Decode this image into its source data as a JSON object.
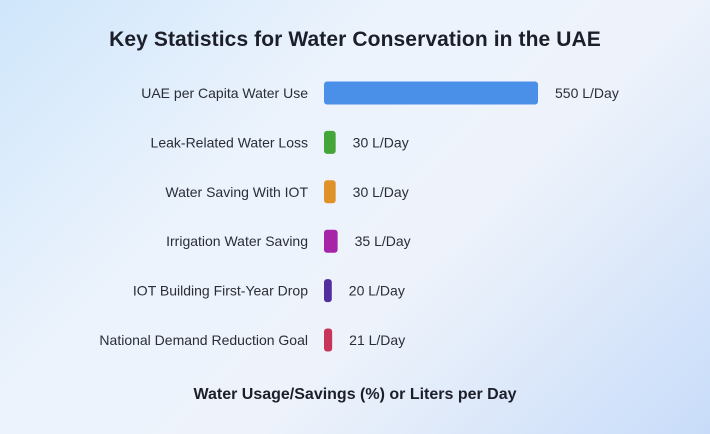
{
  "chart_data": {
    "type": "bar",
    "orientation": "horizontal",
    "title": "Key Statistics for Water Conservation  in the UAE",
    "xlabel": "Water Usage/Savings (%) or Liters per Day",
    "ylabel": "",
    "categories": [
      "UAE per Capita Water Use",
      "Leak-Related Water Loss",
      "Water Saving With IOT",
      "Irrigation Water Saving",
      "IOT Building First-Year Drop",
      "National Demand Reduction Goal"
    ],
    "values": [
      550,
      30,
      30,
      35,
      20,
      21
    ],
    "data_labels": [
      "550 L/Day",
      "30 L/Day",
      "30 L/Day",
      "35 L/Day",
      "20 L/Day",
      "21 L/Day"
    ],
    "colors": [
      "#4a8fe8",
      "#44a538",
      "#e0922a",
      "#a524a8",
      "#532d9e",
      "#c8355a"
    ],
    "xlim": [
      0,
      550
    ],
    "grid": false,
    "legend": "none"
  }
}
